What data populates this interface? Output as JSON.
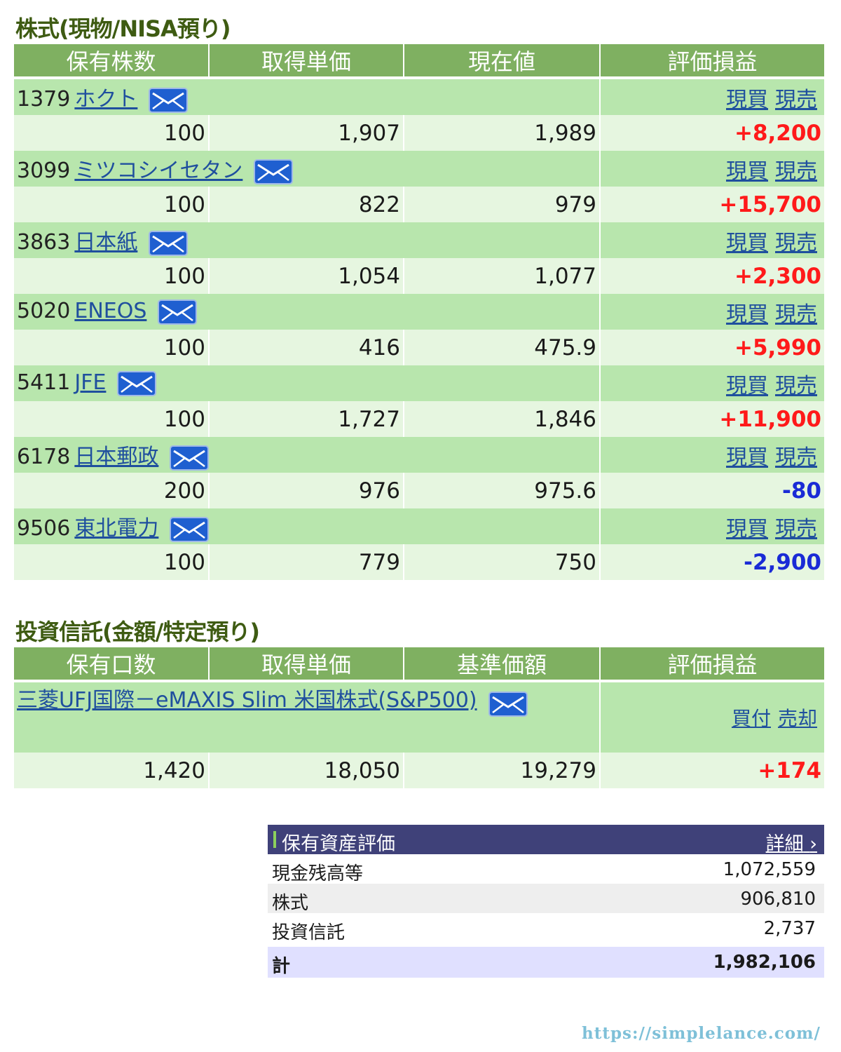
{
  "stocks": {
    "title": "株式(現物/NISA預り)",
    "headers": [
      "保有株数",
      "取得単価",
      "現在値",
      "評価損益"
    ],
    "buy_label": "現買",
    "sell_label": "現売",
    "rows": [
      {
        "code": "1379",
        "name": "ホクト",
        "shares": "100",
        "cost": "1,907",
        "price": "1,989",
        "pl": "+8,200",
        "sign": "pos"
      },
      {
        "code": "3099",
        "name": "ミツコシイセタン",
        "shares": "100",
        "cost": "822",
        "price": "979",
        "pl": "+15,700",
        "sign": "pos"
      },
      {
        "code": "3863",
        "name": "日本紙",
        "shares": "100",
        "cost": "1,054",
        "price": "1,077",
        "pl": "+2,300",
        "sign": "pos"
      },
      {
        "code": "5020",
        "name": "ENEOS",
        "shares": "100",
        "cost": "416",
        "price": "475.9",
        "pl": "+5,990",
        "sign": "pos"
      },
      {
        "code": "5411",
        "name": "JFE",
        "shares": "100",
        "cost": "1,727",
        "price": "1,846",
        "pl": "+11,900",
        "sign": "pos"
      },
      {
        "code": "6178",
        "name": "日本郵政",
        "shares": "200",
        "cost": "976",
        "price": "975.6",
        "pl": "-80",
        "sign": "neg"
      },
      {
        "code": "9506",
        "name": "東北電力",
        "shares": "100",
        "cost": "779",
        "price": "750",
        "pl": "-2,900",
        "sign": "neg"
      }
    ]
  },
  "funds": {
    "title": "投資信託(金額/特定預り)",
    "headers": [
      "保有口数",
      "取得単価",
      "基準価額",
      "評価損益"
    ],
    "buy_label": "買付",
    "sell_label": "売却",
    "rows": [
      {
        "name": "三菱UFJ国際－eMAXIS Slim 米国株式(S&P500)",
        "units": "1,420",
        "cost": "18,050",
        "price": "19,279",
        "pl": "+174",
        "sign": "pos"
      }
    ]
  },
  "summary": {
    "title": "保有資産評価",
    "detail_label": "詳細",
    "rows": [
      {
        "label": "現金残高等",
        "value": "1,072,559"
      },
      {
        "label": "株式",
        "value": "906,810"
      },
      {
        "label": "投資信託",
        "value": "2,737"
      }
    ],
    "total": {
      "label": "計",
      "value": "1,982,106"
    }
  },
  "watermark": "https://simplelance.com/",
  "colors": {
    "header_green": "#7fb061",
    "name_row": "#b8e6ad",
    "value_row": "#e6f6e0",
    "positive": "#ff1a1a",
    "negative": "#1a2bd6",
    "summary_header": "#3f4179",
    "title": "#3e5b12"
  }
}
